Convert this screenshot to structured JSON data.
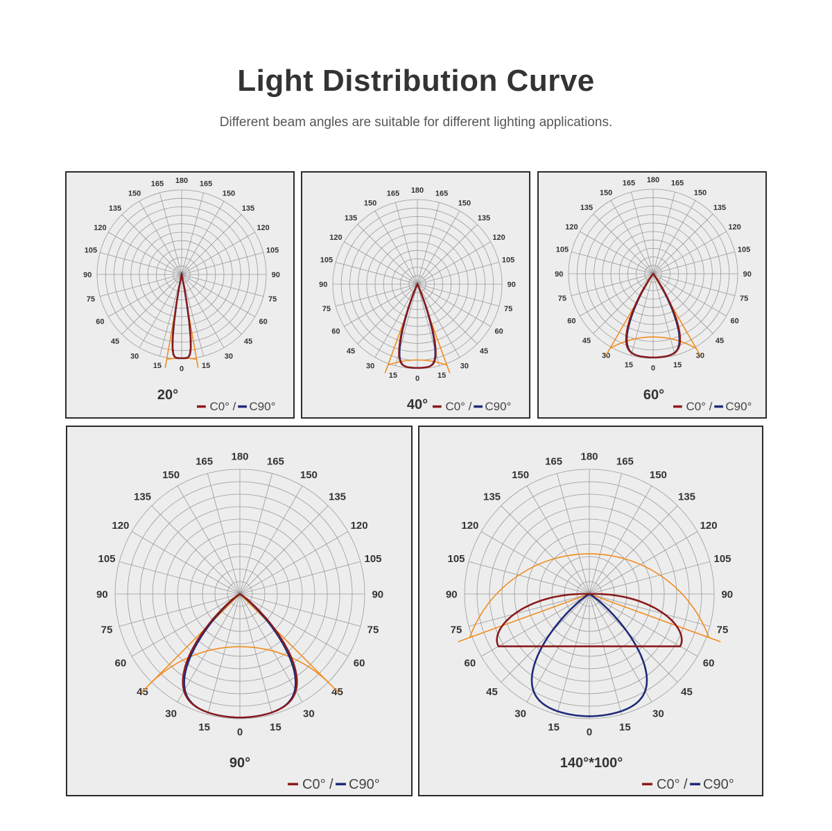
{
  "header": {
    "title": "Light Distribution Curve",
    "subtitle": "Different beam angles are suitable for different lighting applications."
  },
  "colors": {
    "c0": "#8b1a1a",
    "c90": "#1f2a7a",
    "beam_marker": "#f08c1e",
    "grid": "#999999",
    "panel_bg": "#ededed"
  },
  "legend": {
    "c0_label": "C0°",
    "separator": "/",
    "c90_label": "C90°"
  },
  "tick_labels": [
    "0",
    "15",
    "30",
    "45",
    "60",
    "75",
    "90",
    "105",
    "120",
    "135",
    "150",
    "165",
    "180"
  ],
  "charts": [
    {
      "id": "d20",
      "beam_label": "20°",
      "beam_angle": 20,
      "c0_beam": 20,
      "c90_beam": 20
    },
    {
      "id": "d40",
      "beam_label": "40°",
      "beam_angle": 40,
      "c0_beam": 40,
      "c90_beam": 40
    },
    {
      "id": "d60",
      "beam_label": "60°",
      "beam_angle": 60,
      "c0_beam": 60,
      "c90_beam": 60
    },
    {
      "id": "d90",
      "beam_label": "90°",
      "beam_angle": 90,
      "c0_beam": 90,
      "c90_beam": 90
    },
    {
      "id": "d140",
      "beam_label": "140°*100°",
      "beam_angle": 140,
      "c0_beam": 140,
      "c90_beam": 100
    }
  ]
}
